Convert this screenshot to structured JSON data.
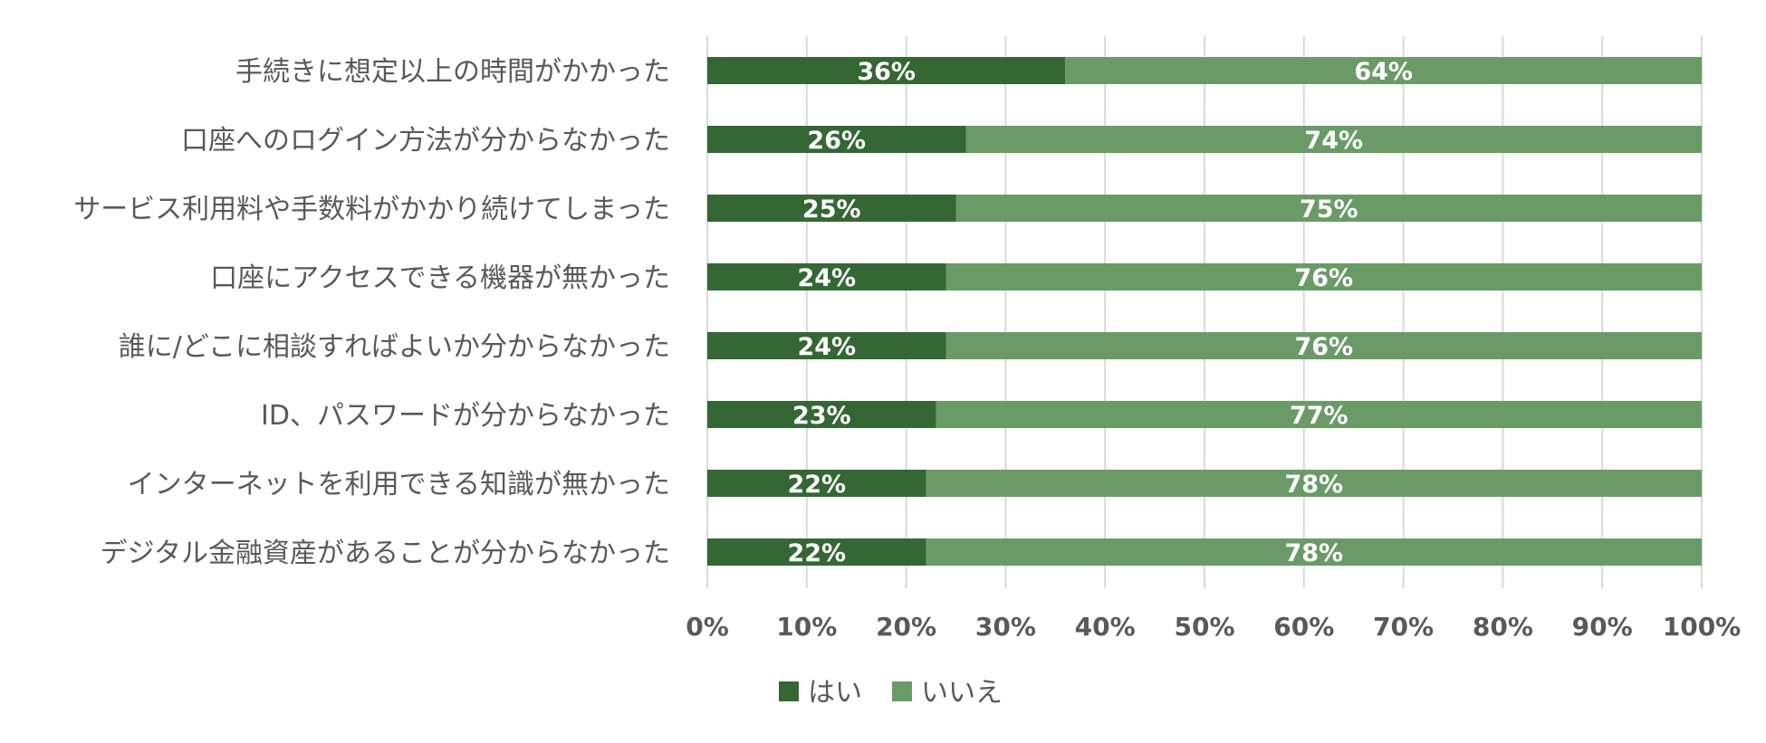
{
  "chart_data": {
    "type": "bar",
    "orientation": "horizontal",
    "stacked": "percent",
    "categories": [
      "手続きに想定以上の時間がかかった",
      "口座へのログイン方法が分からなかった",
      "サービス利用料や手数料がかかり続けてしまった",
      "口座にアクセスできる機器が無かった",
      "誰に/どこに相談すればよいか分からなかった",
      "ID、パスワードが分からなかった",
      "インターネットを利用できる知識が無かった",
      "デジタル金融資産があることが分からなかった"
    ],
    "series": [
      {
        "name": "はい",
        "color": "#346734",
        "values": [
          36,
          26,
          25,
          24,
          24,
          23,
          22,
          22
        ]
      },
      {
        "name": "いいえ",
        "color": "#6a9b67",
        "values": [
          64,
          74,
          75,
          76,
          76,
          77,
          78,
          78
        ]
      }
    ],
    "xlim": [
      0,
      100
    ],
    "xticks": [
      "0%",
      "10%",
      "20%",
      "30%",
      "40%",
      "50%",
      "60%",
      "70%",
      "80%",
      "90%",
      "100%"
    ],
    "grid": true,
    "legend_position": "bottom"
  }
}
